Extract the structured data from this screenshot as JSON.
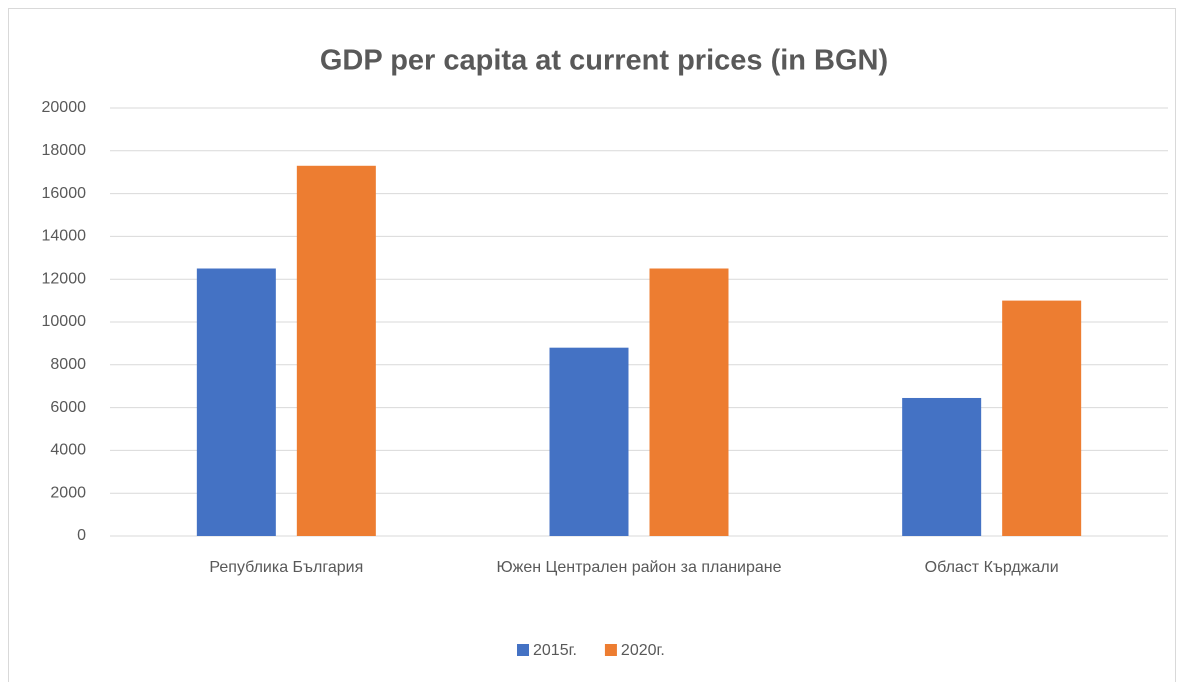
{
  "chart_data": {
    "type": "bar",
    "title": "GDP per capita at current prices (in BGN)",
    "categories": [
      "Република България",
      "Южен Централен район за планиране",
      "Област Кърджали"
    ],
    "series": [
      {
        "name": "2015г.",
        "color": "#4472c4",
        "values": [
          12500,
          8800,
          6450
        ]
      },
      {
        "name": "2020г.",
        "color": "#ed7d31",
        "values": [
          17300,
          12500,
          11000
        ]
      }
    ],
    "ylim": [
      0,
      20000
    ],
    "yticks": [
      0,
      2000,
      4000,
      6000,
      8000,
      10000,
      12000,
      14000,
      16000,
      18000,
      20000
    ],
    "grid": true,
    "legend": "bottom"
  }
}
